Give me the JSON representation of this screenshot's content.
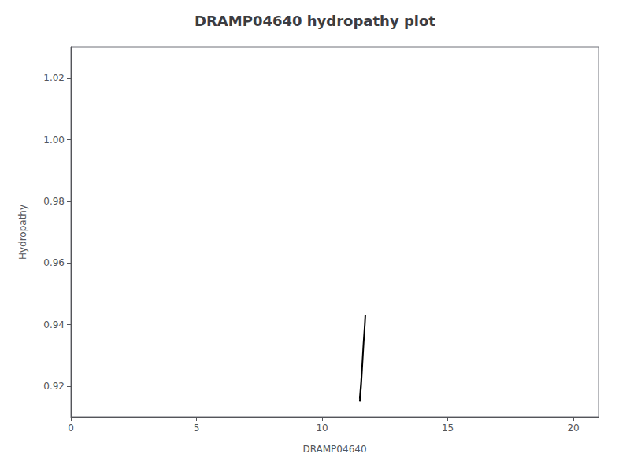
{
  "chart_data": {
    "type": "line",
    "title": "DRAMP04640 hydropathy plot",
    "xlabel": "DRAMP04640",
    "ylabel": "Hydropathy",
    "x": [
      11.5,
      11.55,
      11.6,
      11.65,
      11.7,
      11.72,
      11.7,
      11.65,
      11.6,
      11.55,
      11.5
    ],
    "values": [
      0.915,
      0.92,
      0.927,
      0.934,
      0.94,
      0.943,
      0.94,
      0.934,
      0.927,
      0.921,
      0.916
    ],
    "color": "#000000",
    "xlim": [
      0,
      21
    ],
    "ylim": [
      0.91,
      1.03
    ],
    "xticks": [
      0,
      5,
      10,
      15,
      20
    ],
    "yticks": [
      0.92,
      0.94,
      0.96,
      0.98,
      {
        "value": 1,
        "label": "1.00"
      },
      1.02
    ],
    "grid": false
  }
}
